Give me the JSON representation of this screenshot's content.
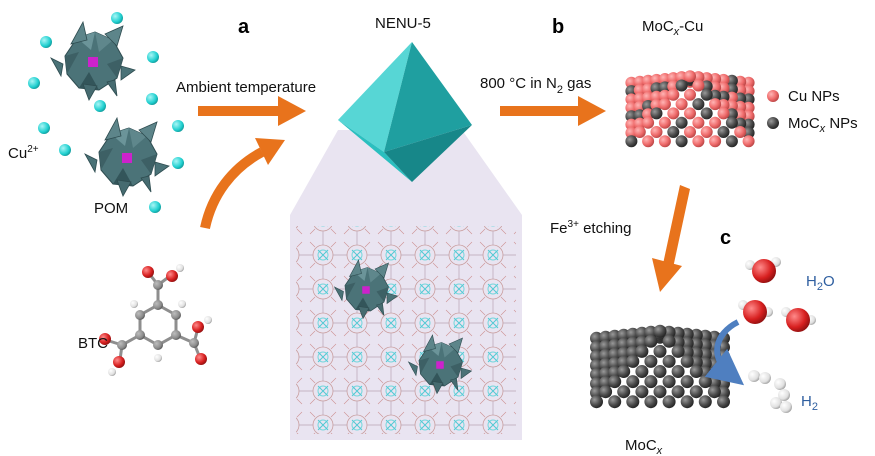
{
  "panels": {
    "a": "a",
    "b": "b",
    "c": "c"
  },
  "labels": {
    "cu2": "Cu",
    "cu2_sup": "2+",
    "pom": "POM",
    "btc": "BTC",
    "nenu": "NENU-5",
    "ambient": "Ambient temperature",
    "heat_pre": "800 °C in N",
    "heat_sub": "2",
    "heat_post": " gas",
    "moc_cu_pre": "MoC",
    "moc_cu_x": "x",
    "moc_cu_post": "-Cu",
    "cu_nps": "Cu NPs",
    "mocx_nps_pre": "MoC",
    "mocx_nps_x": "x",
    "mocx_nps_post": " NPs",
    "fe_pre": "Fe",
    "fe_sup": "3+",
    "fe_post": " etching",
    "mocx_pre": "MoC",
    "mocx_x": "x",
    "h2o_pre": "H",
    "h2o_sub": "2",
    "h2o_post": "O",
    "h2_pre": "H",
    "h2_sub": "2"
  },
  "colors": {
    "arrow": "#e8731c",
    "crystal": "#2bbfbf",
    "crystal_dark": "#1a8f91",
    "polyhedron": "#4b7378",
    "mo_center": "#cc22cc",
    "cu_ion": "#1fcfcf",
    "cu_np": "#ef6b6b",
    "moc_np": "#4a4a4a",
    "framework_bg": "#e9e4f1",
    "curved_arrow": "#4f7fc0",
    "oxygen": "#d71f1f",
    "hydrogen": "#e6e6e6"
  },
  "icons": {
    "pom": "polyoxometalate-cluster-icon",
    "btc": "btc-molecule-icon",
    "crystal": "octahedral-crystal-icon",
    "framework": "mof-framework-icon",
    "particle_mixed": "moc-cu-particle-icon",
    "particle_pure": "mocx-particle-icon",
    "water": "water-molecule-icon",
    "hydrogen": "hydrogen-molecule-icon"
  }
}
